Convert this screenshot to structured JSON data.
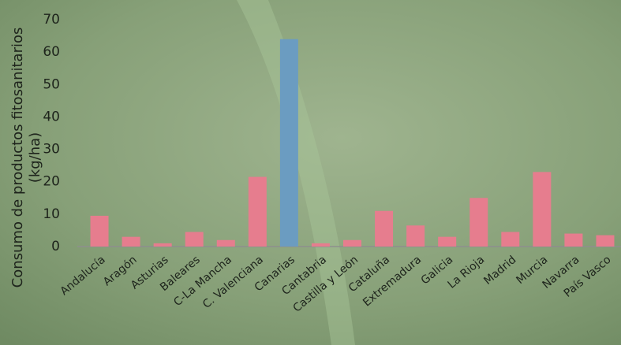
{
  "chart_data": {
    "type": "bar",
    "ylabel": [
      "Consumo de productos fitosanitarios",
      "(kg/ha)"
    ],
    "categories": [
      "Andalucía",
      "Aragón",
      "Asturias",
      "Baleares",
      "C-La Mancha",
      "C. Valenciana",
      "Canarias",
      "Cantabria",
      "Castilla y León",
      "Cataluña",
      "Extremadura",
      "Galicia",
      "La Rioja",
      "Madrid",
      "Murcia",
      "Navarra",
      "País Vasco"
    ],
    "values": [
      9.5,
      3,
      1,
      4.5,
      2,
      21.5,
      64,
      1,
      2,
      11,
      6.5,
      3,
      15,
      4.5,
      23,
      4,
      3.5
    ],
    "colors": [
      "#e67d8e",
      "#e67d8e",
      "#e67d8e",
      "#e67d8e",
      "#e67d8e",
      "#e67d8e",
      "#6b9cc1",
      "#e67d8e",
      "#e67d8e",
      "#e67d8e",
      "#e67d8e",
      "#e67d8e",
      "#e67d8e",
      "#e67d8e",
      "#e67d8e",
      "#e67d8e",
      "#e67d8e"
    ],
    "ylim": [
      0,
      70
    ],
    "yticks": [
      0,
      10,
      20,
      30,
      40,
      50,
      60,
      70
    ],
    "grid": false
  }
}
